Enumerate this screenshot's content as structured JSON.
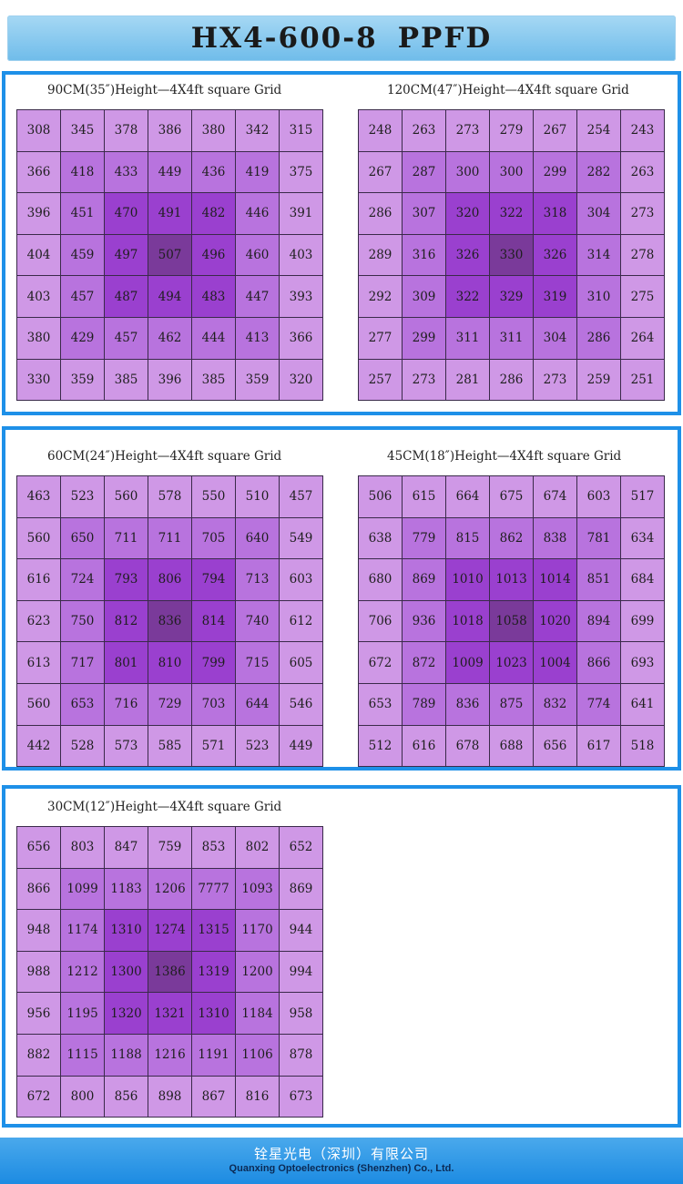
{
  "title": "HX4-600-8  PPFD",
  "title_parts": [
    "HX4-600-8",
    "PPFD"
  ],
  "colors": {
    "accent_blue": "#1e90e8",
    "cell_light": "#cf98e6",
    "cell_mid": "#b873de",
    "cell_strong": "#9a40cf",
    "cell_peak": "#7a3a9a"
  },
  "grids": [
    {
      "caption": "90CM(35″)Height—4X4ft square Grid",
      "rows": [
        [
          "308",
          "345",
          "378",
          "386",
          "380",
          "342",
          "315"
        ],
        [
          "366",
          "418",
          "433",
          "449",
          "436",
          "419",
          "375"
        ],
        [
          "396",
          "451",
          "470",
          "491",
          "482",
          "446",
          "391"
        ],
        [
          "404",
          "459",
          "497",
          "507",
          "496",
          "460",
          "403"
        ],
        [
          "403",
          "457",
          "487",
          "494",
          "483",
          "447",
          "393"
        ],
        [
          "380",
          "429",
          "457",
          "462",
          "444",
          "413",
          "366"
        ],
        [
          "330",
          "359",
          "385",
          "396",
          "385",
          "359",
          "320"
        ]
      ]
    },
    {
      "caption": "120CM(47″)Height—4X4ft square Grid",
      "rows": [
        [
          "248",
          "263",
          "273",
          "279",
          "267",
          "254",
          "243"
        ],
        [
          "267",
          "287",
          "300",
          "300",
          "299",
          "282",
          "263"
        ],
        [
          "286",
          "307",
          "320",
          "322",
          "318",
          "304",
          "273"
        ],
        [
          "289",
          "316",
          "326",
          "330",
          "326",
          "314",
          "278"
        ],
        [
          "292",
          "309",
          "322",
          "329",
          "319",
          "310",
          "275"
        ],
        [
          "277",
          "299",
          "311",
          "311",
          "304",
          "286",
          "264"
        ],
        [
          "257",
          "273",
          "281",
          "286",
          "273",
          "259",
          "251"
        ]
      ]
    },
    {
      "caption": "60CM(24″)Height—4X4ft square Grid",
      "rows": [
        [
          "463",
          "523",
          "560",
          "578",
          "550",
          "510",
          "457"
        ],
        [
          "560",
          "650",
          "711",
          "711",
          "705",
          "640",
          "549"
        ],
        [
          "616",
          "724",
          "793",
          "806",
          "794",
          "713",
          "603"
        ],
        [
          "623",
          "750",
          "812",
          "836",
          "814",
          "740",
          "612"
        ],
        [
          "613",
          "717",
          "801",
          "810",
          "799",
          "715",
          "605"
        ],
        [
          "560",
          "653",
          "716",
          "729",
          "703",
          "644",
          "546"
        ],
        [
          "442",
          "528",
          "573",
          "585",
          "571",
          "523",
          "449"
        ]
      ]
    },
    {
      "caption": "45CM(18″)Height—4X4ft square Grid",
      "rows": [
        [
          "506",
          "615",
          "664",
          "675",
          "674",
          "603",
          "517"
        ],
        [
          "638",
          "779",
          "815",
          "862",
          "838",
          "781",
          "634"
        ],
        [
          "680",
          "869",
          "1010",
          "1013",
          "1014",
          "851",
          "684"
        ],
        [
          "706",
          "936",
          "1018",
          "1058",
          "1020",
          "894",
          "699"
        ],
        [
          "672",
          "872",
          "1009",
          "1023",
          "1004",
          "866",
          "693"
        ],
        [
          "653",
          "789",
          "836",
          "875",
          "832",
          "774",
          "641"
        ],
        [
          "512",
          "616",
          "678",
          "688",
          "656",
          "617",
          "518"
        ]
      ]
    },
    {
      "caption": "30CM(12″)Height—4X4ft square Grid",
      "rows": [
        [
          "656",
          "803",
          "847",
          "759",
          "853",
          "802",
          "652"
        ],
        [
          "866",
          "1099",
          "1183",
          "1206",
          "7777",
          "1093",
          "869"
        ],
        [
          "948",
          "1174",
          "1310",
          "1274",
          "1315",
          "1170",
          "944"
        ],
        [
          "988",
          "1212",
          "1300",
          "1386",
          "1319",
          "1200",
          "994"
        ],
        [
          "956",
          "1195",
          "1320",
          "1321",
          "1310",
          "1184",
          "958"
        ],
        [
          "882",
          "1115",
          "1188",
          "1216",
          "1191",
          "1106",
          "878"
        ],
        [
          "672",
          "800",
          "856",
          "898",
          "867",
          "816",
          "673"
        ]
      ]
    }
  ],
  "footer": {
    "company_cn": "铨星光电（深圳）有限公司",
    "company_en": "Quanxing Optoelectronics (Shenzhen) Co., Ltd."
  }
}
